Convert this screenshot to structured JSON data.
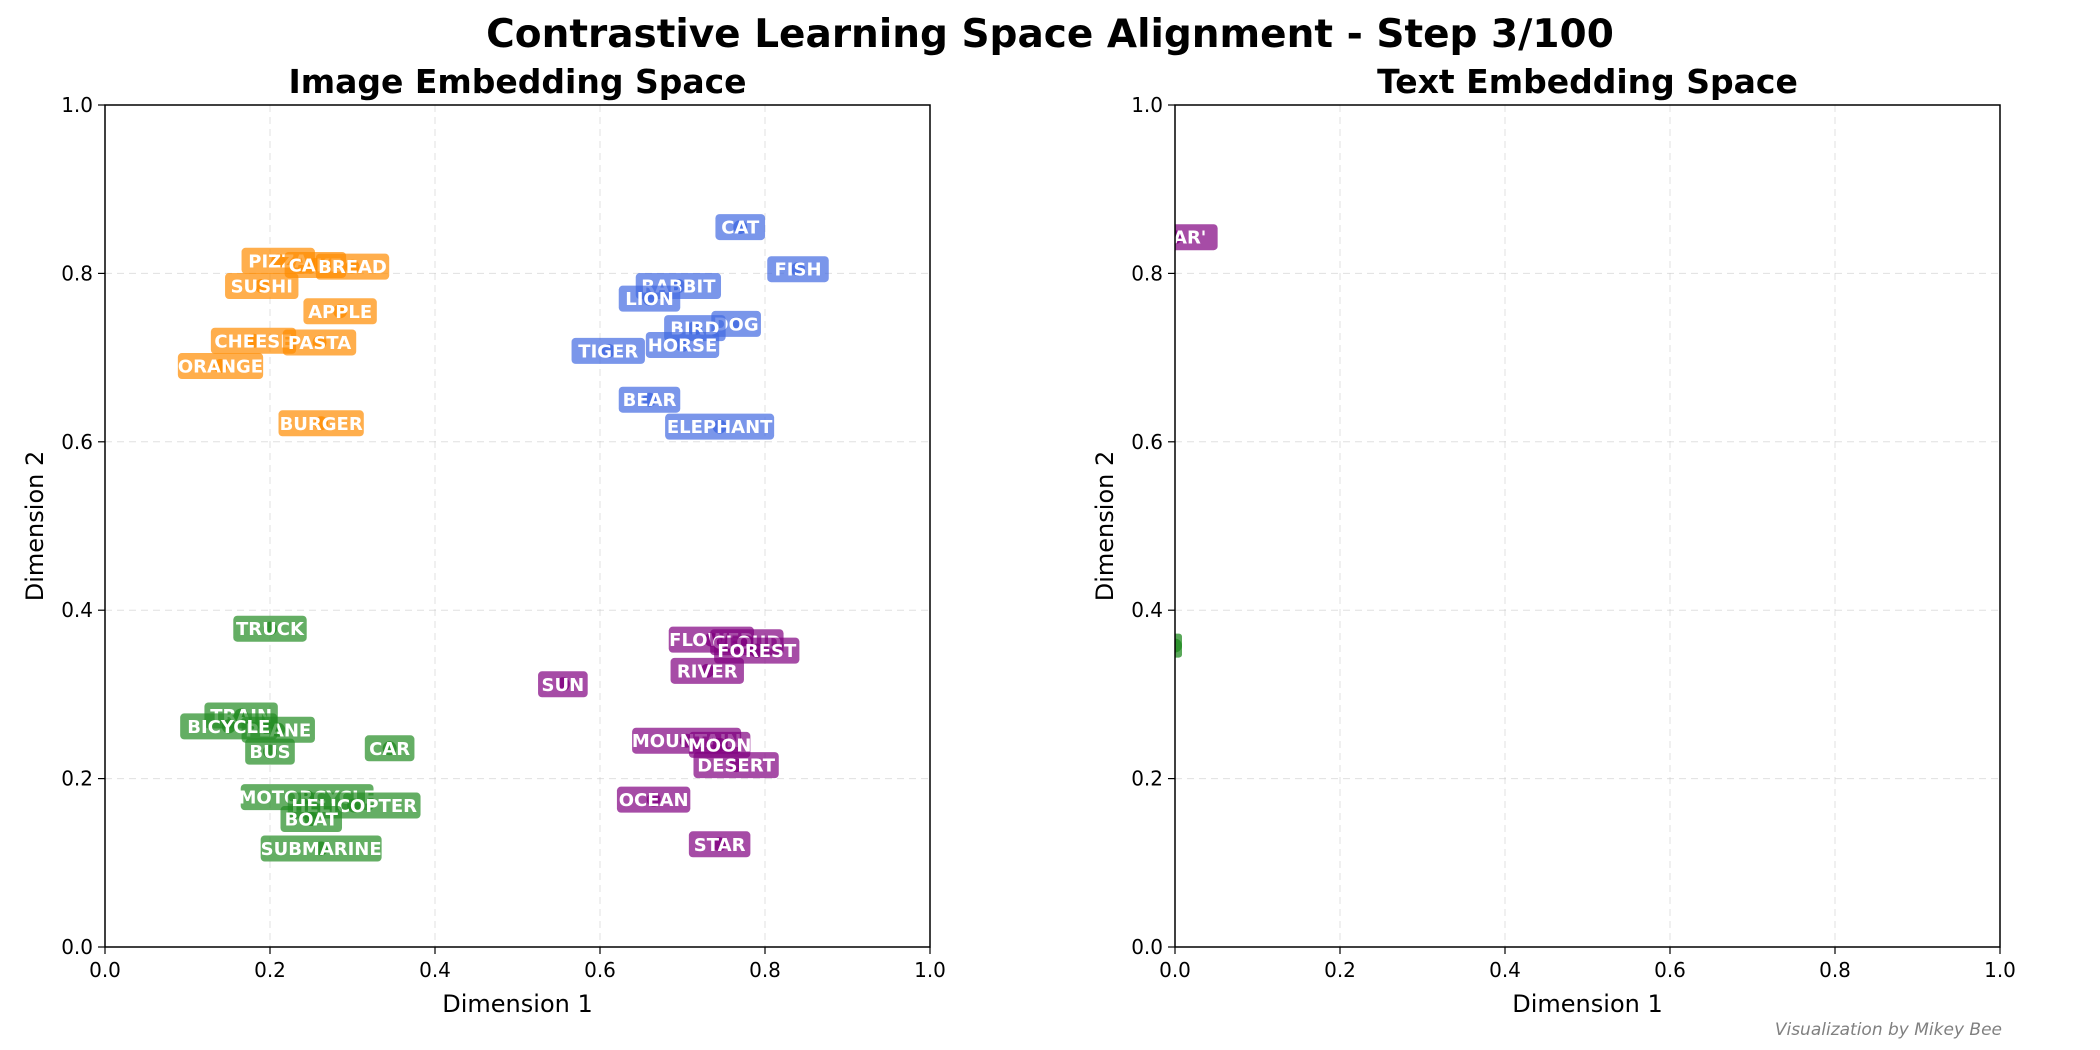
{
  "figure": {
    "title": "Contrastive Learning Space Alignment - Step 3/100",
    "credit": "Visualization by Mikey Bee"
  },
  "colors": {
    "animals": "#4169e1",
    "food": "#ff8c00",
    "vehicles": "#228b22",
    "nature": "#800080",
    "grid": "#cccccc",
    "text_on_label": "#ffffff"
  },
  "chart_data": [
    {
      "type": "scatter",
      "title": "Image Embedding Space",
      "xlabel": "Dimension 1",
      "ylabel": "Dimension 2",
      "xlim": [
        0,
        1
      ],
      "ylim": [
        0,
        1
      ],
      "xticks": [
        "0.0",
        "0.2",
        "0.4",
        "0.6",
        "0.8",
        "1.0"
      ],
      "yticks": [
        "0.0",
        "0.2",
        "0.4",
        "0.6",
        "0.8",
        "1.0"
      ],
      "grid": true,
      "series": [
        {
          "group": "animals",
          "points": [
            {
              "label": "CAT",
              "x": 0.77,
              "y": 0.855
            },
            {
              "label": "FISH",
              "x": 0.84,
              "y": 0.805
            },
            {
              "label": "RABBIT",
              "x": 0.695,
              "y": 0.785
            },
            {
              "label": "LION",
              "x": 0.66,
              "y": 0.77
            },
            {
              "label": "DOG",
              "x": 0.765,
              "y": 0.74
            },
            {
              "label": "BIRD",
              "x": 0.715,
              "y": 0.735
            },
            {
              "label": "HORSE",
              "x": 0.7,
              "y": 0.715
            },
            {
              "label": "TIGER",
              "x": 0.61,
              "y": 0.708
            },
            {
              "label": "BEAR",
              "x": 0.66,
              "y": 0.65
            },
            {
              "label": "ELEPHANT",
              "x": 0.745,
              "y": 0.618
            }
          ]
        },
        {
          "group": "food",
          "points": [
            {
              "label": "PIZZA",
              "x": 0.21,
              "y": 0.815
            },
            {
              "label": "CAKE",
              "x": 0.255,
              "y": 0.81
            },
            {
              "label": "BREAD",
              "x": 0.3,
              "y": 0.808
            },
            {
              "label": "SUSHI",
              "x": 0.19,
              "y": 0.785
            },
            {
              "label": "APPLE",
              "x": 0.285,
              "y": 0.755
            },
            {
              "label": "CHEESE",
              "x": 0.18,
              "y": 0.72
            },
            {
              "label": "PASTA",
              "x": 0.26,
              "y": 0.718
            },
            {
              "label": "ORANGE",
              "x": 0.14,
              "y": 0.69
            },
            {
              "label": "BURGER",
              "x": 0.262,
              "y": 0.622
            }
          ]
        },
        {
          "group": "vehicles",
          "points": [
            {
              "label": "TRUCK",
              "x": 0.2,
              "y": 0.378
            },
            {
              "label": "TRAIN",
              "x": 0.165,
              "y": 0.275
            },
            {
              "label": "PLANE",
              "x": 0.21,
              "y": 0.258
            },
            {
              "label": "BICYCLE",
              "x": 0.15,
              "y": 0.262
            },
            {
              "label": "CAR",
              "x": 0.345,
              "y": 0.236
            },
            {
              "label": "BUS",
              "x": 0.2,
              "y": 0.232
            },
            {
              "label": "MOTORCYCLE",
              "x": 0.245,
              "y": 0.178
            },
            {
              "label": "HELICOPTER",
              "x": 0.302,
              "y": 0.168
            },
            {
              "label": "BOAT",
              "x": 0.25,
              "y": 0.152
            },
            {
              "label": "SUBMARINE",
              "x": 0.262,
              "y": 0.117
            }
          ]
        },
        {
          "group": "nature",
          "points": [
            {
              "label": "FLOWER",
              "x": 0.735,
              "y": 0.365
            },
            {
              "label": "CLOUD",
              "x": 0.778,
              "y": 0.362
            },
            {
              "label": "FOREST",
              "x": 0.79,
              "y": 0.352
            },
            {
              "label": "RIVER",
              "x": 0.73,
              "y": 0.328
            },
            {
              "label": "SUN",
              "x": 0.555,
              "y": 0.312
            },
            {
              "label": "MOUNTAIN",
              "x": 0.705,
              "y": 0.245
            },
            {
              "label": "MOON",
              "x": 0.745,
              "y": 0.24
            },
            {
              "label": "DESERT",
              "x": 0.765,
              "y": 0.216
            },
            {
              "label": "OCEAN",
              "x": 0.665,
              "y": 0.175
            },
            {
              "label": "STAR",
              "x": 0.745,
              "y": 0.122
            }
          ]
        }
      ]
    },
    {
      "type": "scatter",
      "title": "Text Embedding Space",
      "xlabel": "Dimension 1",
      "ylabel": "Dimension 2",
      "xlim": [
        0,
        1
      ],
      "ylim": [
        0,
        1
      ],
      "xticks": [
        "0.0",
        "0.2",
        "0.4",
        "0.6",
        "0.8",
        "1.0"
      ],
      "yticks": [
        "0.0",
        "0.2",
        "0.4",
        "0.6",
        "0.8",
        "1.0"
      ],
      "grid": true,
      "series": [
        {
          "group": "nature",
          "points": [
            {
              "label": "'STAR'",
              "x": 0.0,
              "y": 0.843
            }
          ]
        },
        {
          "group": "vehicles",
          "points": [
            {
              "label": "",
              "x": 0.0,
              "y": 0.358
            }
          ]
        }
      ]
    }
  ]
}
